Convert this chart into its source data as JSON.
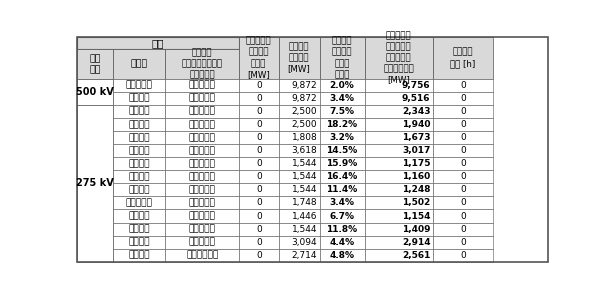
{
  "rows": [
    {
      "voltage": "500 kV",
      "line": "十和田幹線",
      "station": "上北～岩手",
      "pub_cap": "0",
      "max_cap": "9,872",
      "util": "2.0%",
      "actual_cap": "9,756",
      "congestion": "0"
    },
    {
      "voltage": "",
      "line": "北上幹線",
      "station": "岩手～宮城",
      "pub_cap": "0",
      "max_cap": "9,872",
      "util": "3.4%",
      "actual_cap": "9,516",
      "congestion": "0"
    },
    {
      "voltage": "275 kV",
      "line": "北青幹線",
      "station": "上北～青森",
      "pub_cap": "0",
      "max_cap": "2,500",
      "util": "7.5%",
      "actual_cap": "2,343",
      "congestion": "0"
    },
    {
      "voltage": "",
      "line": "北奈幹線",
      "station": "能代～青森",
      "pub_cap": "0",
      "max_cap": "2,500",
      "util": "18.2%",
      "actual_cap": "1,940",
      "congestion": "0"
    },
    {
      "voltage": "",
      "line": "北部幹線",
      "station": "上北～岩手",
      "pub_cap": "0",
      "max_cap": "1,808",
      "util": "3.2%",
      "actual_cap": "1,673",
      "congestion": "0"
    },
    {
      "voltage": "",
      "line": "大潟幹線",
      "station": "能代～秋田",
      "pub_cap": "0",
      "max_cap": "3,618",
      "util": "14.5%",
      "actual_cap": "3,017",
      "congestion": "0"
    },
    {
      "voltage": "",
      "line": "秋盛幹線",
      "station": "秋田～雫石",
      "pub_cap": "0",
      "max_cap": "1,544",
      "util": "15.9%",
      "actual_cap": "1,175",
      "congestion": "0"
    },
    {
      "voltage": "",
      "line": "岩手幹線",
      "station": "雫石～岩手",
      "pub_cap": "0",
      "max_cap": "1,544",
      "util": "16.4%",
      "actual_cap": "1,160",
      "congestion": "0"
    },
    {
      "voltage": "",
      "line": "秋田幹線",
      "station": "秋田～羽後",
      "pub_cap": "0",
      "max_cap": "1,544",
      "util": "11.4%",
      "actual_cap": "1,248",
      "congestion": "0"
    },
    {
      "voltage": "",
      "line": "早池峰幹線",
      "station": "岩手～水沢",
      "pub_cap": "0",
      "max_cap": "1,748",
      "util": "3.4%",
      "actual_cap": "1,502",
      "congestion": "0"
    },
    {
      "voltage": "",
      "line": "奥羽幹線",
      "station": "羽後～宮城",
      "pub_cap": "0",
      "max_cap": "1,446",
      "util": "6.7%",
      "actual_cap": "1,154",
      "congestion": "0"
    },
    {
      "voltage": "",
      "line": "水沢幹線",
      "station": "水沢～宮城",
      "pub_cap": "0",
      "max_cap": "1,544",
      "util": "11.8%",
      "actual_cap": "1,409",
      "congestion": "0"
    },
    {
      "voltage": "",
      "line": "陸羽幹線",
      "station": "宮城～新庄",
      "pub_cap": "0",
      "max_cap": "3,094",
      "util": "4.4%",
      "actual_cap": "2,914",
      "congestion": "0"
    },
    {
      "voltage": "",
      "line": "山形幹線",
      "station": "新庄～西山形",
      "pub_cap": "0",
      "max_cap": "2,714",
      "util": "4.8%",
      "actual_cap": "2,561",
      "congestion": "0"
    }
  ],
  "header_linero": "線路",
  "header_voltage": "電圧\n階級",
  "header_line": "線路名",
  "header_station": "変電所名\n（左から右が潮流\nの順方向）",
  "header_pub_cap": "電力会社が\n公表する\n空容量\n[MW]",
  "header_max_cap": "年間最大\n運用容量\n[MW]",
  "header_util": "年間最大\n運用容量\n基準の\n利用率",
  "header_actual_cap": "実潮流に基\nづく空容量\n（順方向の\n年間平均値）\n[MW]",
  "header_congestion": "送電混雑\n時間 [h]",
  "bg_header": "#d9d9d9",
  "bg_white": "#ffffff",
  "border_color": "#555555",
  "voltage_groups": [
    {
      "label": "500 kV",
      "start": 0,
      "end": 2
    },
    {
      "label": "275 kV",
      "start": 2,
      "end": 14
    }
  ]
}
